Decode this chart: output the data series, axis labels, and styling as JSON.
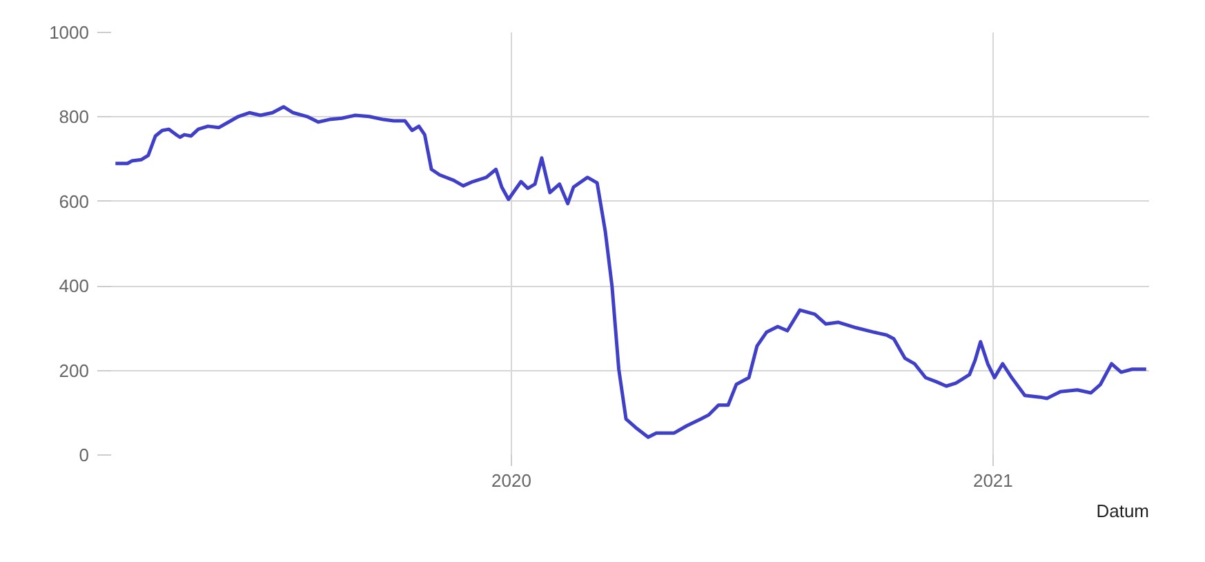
{
  "chart_data": {
    "type": "line",
    "xlabel": "Datum",
    "xlim": [
      2019.169,
      2021.324
    ],
    "xticks": [
      2020,
      2021
    ],
    "ylim": [
      0,
      1000
    ],
    "yticks": [
      0,
      200,
      400,
      600,
      800,
      1000
    ],
    "grid": true,
    "marker": "none",
    "line_style": "solid",
    "x": [
      2019.178,
      2019.203,
      2019.212,
      2019.232,
      2019.246,
      2019.261,
      2019.275,
      2019.289,
      2019.304,
      2019.312,
      2019.321,
      2019.335,
      2019.35,
      2019.37,
      2019.393,
      2019.413,
      2019.433,
      2019.456,
      2019.479,
      2019.504,
      2019.527,
      2019.547,
      2019.576,
      2019.599,
      2019.622,
      2019.648,
      2019.676,
      2019.705,
      2019.734,
      2019.756,
      2019.779,
      2019.794,
      2019.808,
      2019.82,
      2019.834,
      2019.851,
      2019.88,
      2019.9,
      2019.92,
      2019.948,
      2019.968,
      2019.98,
      2019.994,
      2020.02,
      2020.034,
      2020.049,
      2020.063,
      2020.08,
      2020.1,
      2020.117,
      2020.129,
      2020.158,
      2020.178,
      2020.195,
      2020.209,
      2020.223,
      2020.238,
      2020.258,
      2020.284,
      2020.301,
      2020.338,
      2020.364,
      2020.393,
      2020.41,
      2020.43,
      2020.45,
      2020.467,
      2020.493,
      2020.51,
      2020.53,
      2020.553,
      2020.573,
      2020.599,
      2020.63,
      2020.653,
      2020.679,
      2020.716,
      2020.751,
      2020.779,
      2020.794,
      2020.817,
      2020.837,
      2020.86,
      2020.883,
      2020.903,
      2020.923,
      2020.951,
      2020.963,
      2020.974,
      2020.989,
      2021.003,
      2021.02,
      2021.037,
      2021.066,
      2021.097,
      2021.112,
      2021.14,
      2021.175,
      2021.203,
      2021.223,
      2021.246,
      2021.266,
      2021.289,
      2021.318
    ],
    "series": [
      {
        "color": "#3f3fc8",
        "values": [
          690,
          690,
          696,
          699,
          709,
          755,
          768,
          771,
          758,
          752,
          758,
          755,
          771,
          778,
          775,
          788,
          801,
          810,
          804,
          810,
          824,
          810,
          801,
          788,
          794,
          797,
          804,
          801,
          794,
          791,
          791,
          768,
          778,
          758,
          676,
          663,
          650,
          637,
          647,
          657,
          676,
          634,
          605,
          647,
          631,
          641,
          703,
          621,
          641,
          595,
          634,
          657,
          644,
          529,
          399,
          203,
          85,
          65,
          42,
          52,
          52,
          69,
          85,
          95,
          118,
          118,
          167,
          183,
          258,
          291,
          304,
          294,
          343,
          333,
          310,
          314,
          301,
          291,
          284,
          275,
          229,
          216,
          183,
          173,
          163,
          170,
          190,
          225,
          268,
          216,
          183,
          216,
          186,
          141,
          137,
          134,
          150,
          154,
          147,
          167,
          216,
          196,
          203,
          203
        ]
      }
    ]
  }
}
